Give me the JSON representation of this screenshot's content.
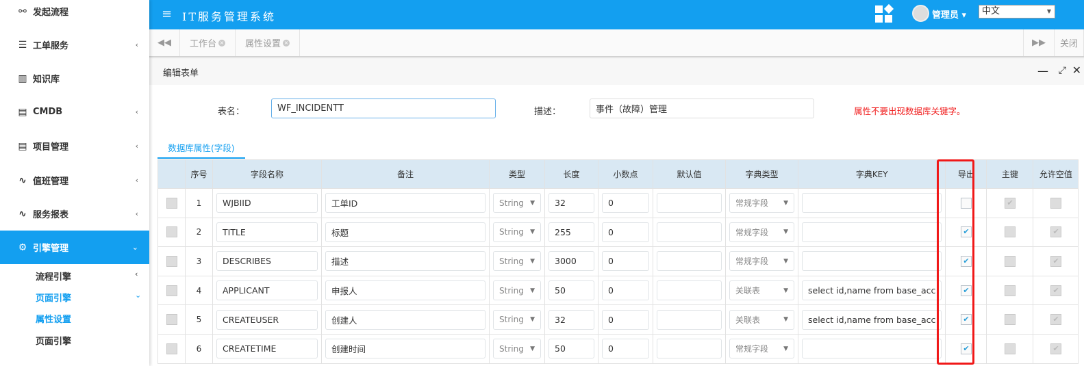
{
  "sidebar": {
    "items": [
      {
        "label": "发起流程",
        "icon": "share-nodes-icon",
        "chev": ""
      },
      {
        "label": "工单服务",
        "icon": "list-icon",
        "chev": "‹"
      },
      {
        "label": "知识库",
        "icon": "book-icon",
        "chev": ""
      },
      {
        "label": "CMDB",
        "icon": "bar-chart-icon",
        "chev": "‹"
      },
      {
        "label": "项目管理",
        "icon": "document-icon",
        "chev": "‹"
      },
      {
        "label": "值班管理",
        "icon": "pulse-icon",
        "chev": "‹"
      },
      {
        "label": "服务报表",
        "icon": "pulse-icon",
        "chev": "‹"
      },
      {
        "label": "引擎管理",
        "icon": "gears-icon",
        "chev": "⌄"
      }
    ],
    "subitems": [
      {
        "label": "流程引擎",
        "chev": "‹"
      },
      {
        "label": "页面引擎",
        "chev": "⌄"
      },
      {
        "label": "属性设置",
        "chev": ""
      },
      {
        "label": "页面引擎",
        "chev": ""
      }
    ]
  },
  "header": {
    "title": "IT服务管理系统",
    "user": "管理员",
    "language": "中文"
  },
  "tabs": {
    "items": [
      "工作台",
      "属性设置"
    ],
    "close": "关闭"
  },
  "panel": {
    "title": "编辑表单",
    "table_name_label": "表名：",
    "table_name": "WF_INCIDENTT",
    "desc_label": "描述：",
    "desc": "事件（故障）管理",
    "warning": "属性不要出现数据库关键字。",
    "subtab": "数据库属性(字段)"
  },
  "colors": {
    "accent": "#139ff0",
    "warning": "#f01818"
  },
  "grid": {
    "headers": [
      "",
      "序号",
      "字段名称",
      "备注",
      "类型",
      "长度",
      "小数点",
      "默认值",
      "字典类型",
      "字典KEY",
      "导出",
      "主键",
      "允许空值"
    ],
    "rows": [
      {
        "no": "1",
        "name": "WJBIID",
        "note": "工单ID",
        "type": "String",
        "len": "32",
        "dec": "0",
        "def": "",
        "dict": "常规字段",
        "key": "",
        "export": false,
        "pk": true,
        "nullable": false
      },
      {
        "no": "2",
        "name": "TITLE",
        "note": "标题",
        "type": "String",
        "len": "255",
        "dec": "0",
        "def": "",
        "dict": "常规字段",
        "key": "",
        "export": true,
        "pk": false,
        "nullable": true
      },
      {
        "no": "3",
        "name": "DESCRIBES",
        "note": "描述",
        "type": "String",
        "len": "3000",
        "dec": "0",
        "def": "",
        "dict": "常规字段",
        "key": "",
        "export": true,
        "pk": false,
        "nullable": true
      },
      {
        "no": "4",
        "name": "APPLICANT",
        "note": "申报人",
        "type": "String",
        "len": "50",
        "dec": "0",
        "def": "",
        "dict": "关联表",
        "key": "select id,name from base_acc",
        "export": true,
        "pk": false,
        "nullable": true
      },
      {
        "no": "5",
        "name": "CREATEUSER",
        "note": "创建人",
        "type": "String",
        "len": "32",
        "dec": "0",
        "def": "",
        "dict": "关联表",
        "key": "select id,name from base_acc",
        "export": true,
        "pk": false,
        "nullable": true
      },
      {
        "no": "6",
        "name": "CREATETIME",
        "note": "创建时间",
        "type": "String",
        "len": "50",
        "dec": "0",
        "def": "",
        "dict": "常规字段",
        "key": "",
        "export": true,
        "pk": false,
        "nullable": true
      }
    ]
  }
}
